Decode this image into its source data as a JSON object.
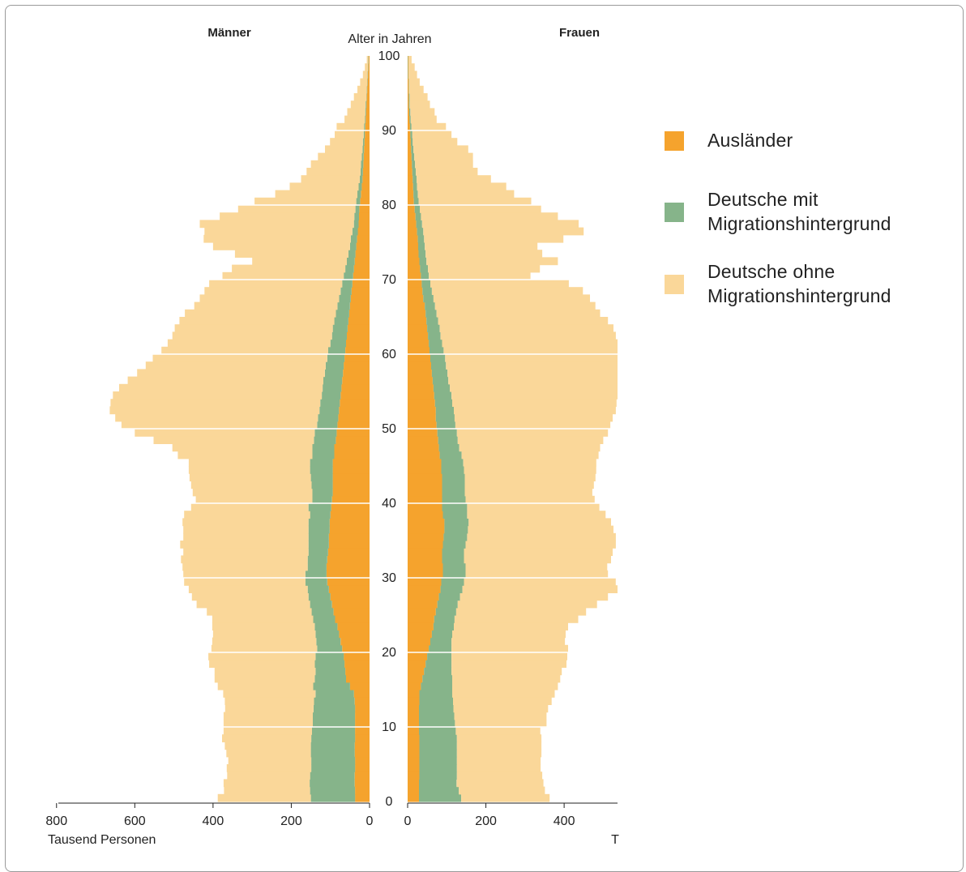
{
  "chart_data": {
    "type": "bar",
    "subtype": "population-pyramid",
    "left_title": "Männer",
    "right_title": "Frauen",
    "center_axis_label": "Alter in Jahren",
    "x_axis_label_left": "Tausend Personen",
    "x_axis_label_right": "T",
    "x_ticks_left": [
      800,
      600,
      400,
      200,
      0
    ],
    "x_ticks_right": [
      0,
      200,
      400
    ],
    "xlim_left": [
      0,
      800
    ],
    "xlim_right": [
      0,
      540
    ],
    "y_ticks": [
      0,
      10,
      20,
      30,
      40,
      50,
      60,
      70,
      80,
      90,
      100
    ],
    "ylim": [
      0,
      100
    ],
    "stack_order": [
      "Ausländer",
      "Deutsche mit Migrationshintergrund",
      "Deutsche ohne Migrationshintergrund"
    ],
    "colors": {
      "Ausländer": "#f5a32d",
      "Deutsche mit Migrationshintergrund": "#86b48a",
      "Deutsche ohne Migrationshintergrund": "#fad799"
    },
    "grid_lines": "white horizontal lines every 10 years",
    "legend_position": "right",
    "age_bands": [
      "0-1",
      "1-2",
      "2-3",
      "3-4",
      "4-5",
      "5-6",
      "6-7",
      "7-8",
      "8-9",
      "9-10",
      "10-11",
      "11-12",
      "12-13",
      "13-14",
      "14-15",
      "15-16",
      "16-17",
      "17-18",
      "18-19",
      "19-20",
      "20-21",
      "21-22",
      "22-23",
      "23-24",
      "24-25",
      "25-26",
      "26-27",
      "27-28",
      "28-29",
      "29-30",
      "30-31",
      "31-32",
      "32-33",
      "33-34",
      "34-35",
      "35-36",
      "36-37",
      "37-38",
      "38-39",
      "39-40",
      "40-41",
      "41-42",
      "42-43",
      "43-44",
      "44-45",
      "45-46",
      "46-47",
      "47-48",
      "48-49",
      "49-50",
      "50-51",
      "51-52",
      "52-53",
      "53-54",
      "54-55",
      "55-56",
      "56-57",
      "57-58",
      "58-59",
      "59-60",
      "60-61",
      "61-62",
      "62-63",
      "63-64",
      "64-65",
      "65-66",
      "66-67",
      "67-68",
      "68-69",
      "69-70",
      "70-71",
      "71-72",
      "72-73",
      "73-74",
      "74-75",
      "75-76",
      "76-77",
      "77-78",
      "78-79",
      "79-80",
      "80-81",
      "81-82",
      "82-83",
      "83-84",
      "84-85",
      "85-86",
      "86-87",
      "87-88",
      "88-89",
      "89-90",
      "90-91",
      "91-92",
      "92-93",
      "93-94",
      "94-95",
      "95-96",
      "96-97",
      "97-98",
      "98-99",
      "99-100"
    ],
    "men": {
      "auslaender": [
        37,
        37,
        38,
        38,
        37,
        37,
        38,
        38,
        37,
        37,
        37,
        37,
        37,
        38,
        40,
        50,
        60,
        62,
        64,
        66,
        70,
        74,
        78,
        82,
        88,
        92,
        96,
        100,
        104,
        108,
        110,
        110,
        108,
        106,
        104,
        104,
        102,
        102,
        100,
        98,
        96,
        94,
        94,
        94,
        94,
        94,
        90,
        90,
        86,
        84,
        82,
        80,
        78,
        76,
        74,
        72,
        70,
        68,
        66,
        64,
        62,
        60,
        58,
        56,
        54,
        52,
        50,
        48,
        46,
        44,
        42,
        40,
        38,
        36,
        34,
        32,
        30,
        28,
        27,
        26,
        24,
        22,
        20,
        18,
        17,
        16,
        15,
        14,
        13,
        12,
        11,
        10,
        9,
        8,
        7,
        6,
        5,
        4,
        3,
        2
      ],
      "mit_migration": [
        113,
        115,
        115,
        114,
        112,
        112,
        112,
        112,
        112,
        110,
        108,
        108,
        106,
        104,
        98,
        94,
        80,
        76,
        76,
        72,
        64,
        62,
        60,
        58,
        56,
        56,
        56,
        56,
        54,
        56,
        54,
        48,
        50,
        50,
        52,
        52,
        54,
        54,
        52,
        58,
        50,
        52,
        54,
        56,
        58,
        58,
        56,
        56,
        56,
        56,
        52,
        52,
        50,
        50,
        48,
        48,
        48,
        46,
        46,
        44,
        44,
        40,
        38,
        38,
        36,
        34,
        32,
        30,
        28,
        26,
        24,
        22,
        20,
        18,
        16,
        16,
        14,
        12,
        12,
        10,
        10,
        9,
        8,
        7,
        6,
        6,
        5,
        4,
        4,
        3,
        3,
        2,
        2,
        2,
        1,
        1,
        1,
        1,
        1,
        1
      ],
      "ohne_migration": [
        238,
        220,
        220,
        212,
        216,
        212,
        216,
        220,
        228,
        226,
        228,
        228,
        226,
        228,
        236,
        244,
        256,
        258,
        270,
        274,
        270,
        266,
        262,
        262,
        258,
        268,
        290,
        298,
        304,
        310,
        312,
        320,
        324,
        320,
        328,
        320,
        320,
        322,
        322,
        300,
        298,
        306,
        308,
        310,
        310,
        310,
        344,
        358,
        410,
        460,
        500,
        518,
        536,
        536,
        534,
        520,
        500,
        480,
        460,
        446,
        426,
        416,
        408,
        404,
        396,
        386,
        366,
        356,
        348,
        340,
        310,
        290,
        242,
        290,
        350,
        376,
        378,
        394,
        344,
        300,
        260,
        210,
        176,
        150,
        138,
        128,
        112,
        96,
        84,
        74,
        70,
        52,
        46,
        38,
        32,
        24,
        18,
        12,
        8,
        4
      ]
    },
    "women": {
      "auslaender": [
        29,
        29,
        29,
        30,
        30,
        30,
        30,
        30,
        30,
        29,
        29,
        29,
        29,
        30,
        30,
        34,
        38,
        42,
        46,
        50,
        54,
        58,
        62,
        66,
        68,
        72,
        76,
        80,
        84,
        86,
        90,
        90,
        88,
        88,
        90,
        92,
        94,
        94,
        90,
        88,
        88,
        88,
        88,
        88,
        86,
        86,
        82,
        80,
        78,
        76,
        74,
        72,
        72,
        70,
        68,
        66,
        64,
        62,
        60,
        58,
        56,
        54,
        52,
        50,
        48,
        46,
        44,
        40,
        38,
        36,
        34,
        32,
        30,
        28,
        27,
        26,
        24,
        22,
        20,
        18,
        16,
        15,
        14,
        13,
        12,
        11,
        10,
        9,
        8,
        7,
        6,
        5,
        4,
        3,
        3,
        2,
        2,
        1,
        1,
        1
      ],
      "mit_migration": [
        108,
        102,
        96,
        96,
        96,
        96,
        96,
        96,
        96,
        94,
        92,
        90,
        88,
        86,
        84,
        80,
        76,
        70,
        66,
        62,
        58,
        54,
        52,
        52,
        52,
        52,
        52,
        54,
        56,
        58,
        58,
        58,
        56,
        56,
        58,
        60,
        60,
        62,
        62,
        64,
        60,
        58,
        58,
        58,
        58,
        56,
        56,
        52,
        50,
        50,
        48,
        48,
        46,
        44,
        44,
        42,
        40,
        40,
        38,
        38,
        36,
        34,
        32,
        32,
        30,
        28,
        26,
        26,
        24,
        22,
        20,
        20,
        18,
        18,
        17,
        16,
        16,
        15,
        14,
        13,
        12,
        11,
        10,
        10,
        9,
        8,
        7,
        6,
        5,
        5,
        4,
        3,
        3,
        2,
        2,
        1,
        1,
        1,
        1,
        1
      ],
      "ohne_migration": [
        226,
        220,
        222,
        218,
        214,
        214,
        216,
        216,
        216,
        216,
        234,
        236,
        242,
        252,
        262,
        270,
        276,
        282,
        294,
        296,
        298,
        290,
        290,
        292,
        316,
        332,
        356,
        378,
        400,
        388,
        364,
        362,
        376,
        380,
        384,
        380,
        372,
        364,
        354,
        338,
        330,
        326,
        330,
        334,
        338,
        340,
        350,
        360,
        372,
        386,
        396,
        404,
        414,
        420,
        428,
        436,
        444,
        452,
        458,
        464,
        466,
        458,
        448,
        444,
        434,
        418,
        410,
        400,
        386,
        354,
        260,
        286,
        336,
        298,
        288,
        356,
        410,
        400,
        350,
        310,
        288,
        246,
        228,
        190,
        158,
        148,
        150,
        140,
        114,
        100,
        88,
        66,
        62,
        52,
        46,
        38,
        28,
        22,
        16,
        8
      ]
    }
  },
  "legend": {
    "items": [
      {
        "label": "Ausländer",
        "color": "#f5a32d"
      },
      {
        "label": "Deutsche mit\nMigrationshintergrund",
        "color": "#86b48a"
      },
      {
        "label": "Deutsche ohne\nMigrationshintergrund",
        "color": "#fad799"
      }
    ]
  }
}
